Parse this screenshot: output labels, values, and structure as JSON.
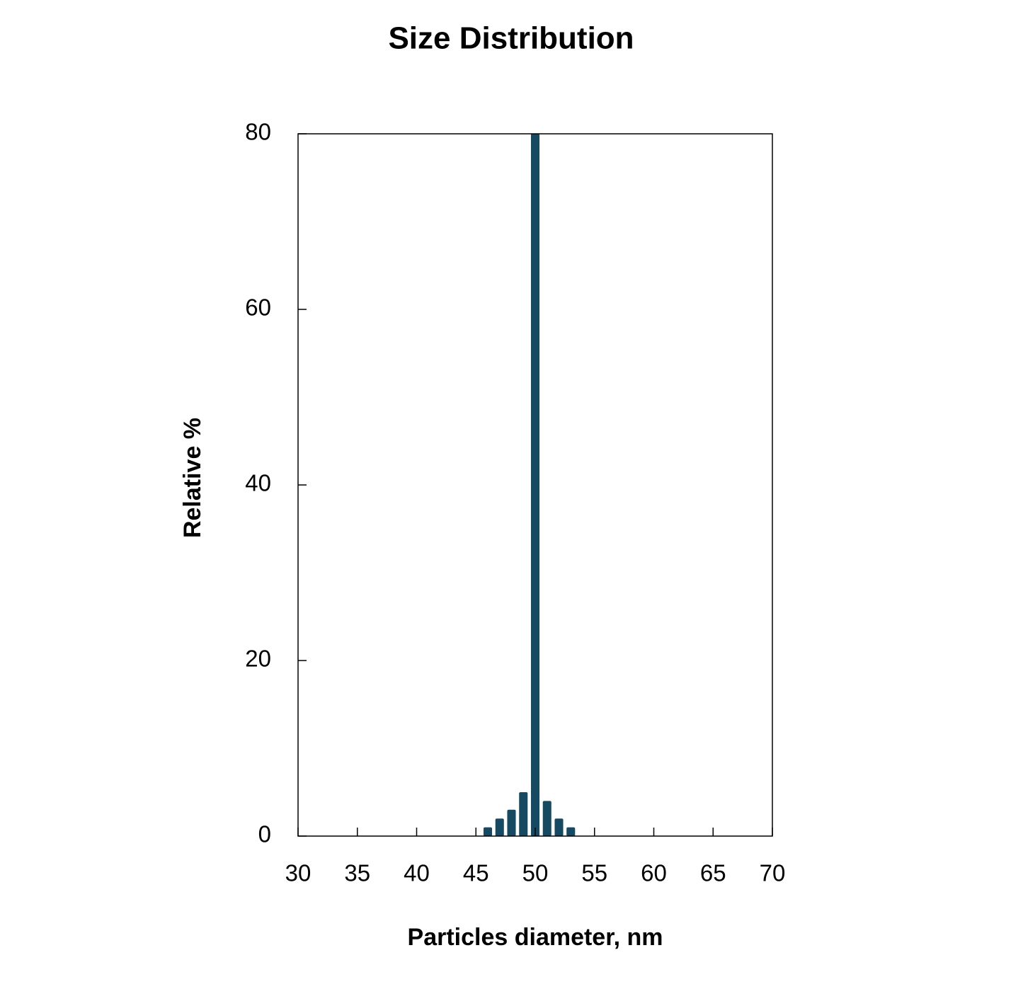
{
  "chart_data": {
    "type": "bar",
    "title": "Size Distribution",
    "x_label": "Particles diameter, nm",
    "y_label": "Relative %",
    "x": [
      46,
      47,
      48,
      49,
      50,
      51,
      52,
      53
    ],
    "values": [
      1,
      2,
      3,
      5,
      80,
      4,
      2,
      1
    ],
    "color": "#164a62",
    "xlim": [
      30,
      70
    ],
    "xticks": [
      30,
      35,
      40,
      45,
      50,
      55,
      60,
      65,
      70
    ],
    "ylim": [
      0,
      80
    ],
    "yticks": [
      0,
      20,
      40,
      60,
      80
    ],
    "grid": false
  }
}
